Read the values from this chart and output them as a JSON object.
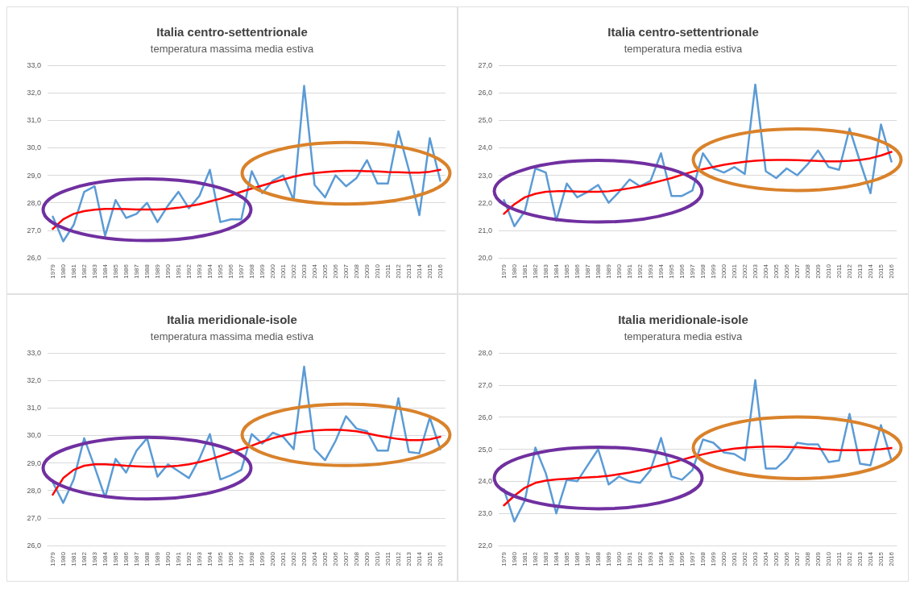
{
  "chart_data": [
    {
      "type": "line",
      "title": "Italia centro-settentrionale",
      "subtitle": "temperatura massima media estiva",
      "categories": [
        "1979",
        "1980",
        "1981",
        "1982",
        "1983",
        "1984",
        "1985",
        "1986",
        "1987",
        "1988",
        "1989",
        "1990",
        "1991",
        "1992",
        "1993",
        "1994",
        "1995",
        "1996",
        "1997",
        "1998",
        "1999",
        "2000",
        "2001",
        "2002",
        "2003",
        "2004",
        "2005",
        "2006",
        "2007",
        "2008",
        "2009",
        "2010",
        "2011",
        "2012",
        "2013",
        "2014",
        "2015",
        "2016"
      ],
      "series": [
        {
          "color": "#5b9bd5",
          "values": [
            27.5,
            26.6,
            27.2,
            28.4,
            28.6,
            26.8,
            28.1,
            27.45,
            27.6,
            28.0,
            27.3,
            27.9,
            28.4,
            27.8,
            28.25,
            29.2,
            27.3,
            27.4,
            27.4,
            29.15,
            28.35,
            28.8,
            29.0,
            28.1,
            32.25,
            28.65,
            28.2,
            29.0,
            28.6,
            28.9,
            29.55,
            28.7,
            28.7,
            30.6,
            29.2,
            27.55,
            30.35,
            28.8
          ]
        },
        {
          "color": "#ff0000",
          "values": [
            27.05,
            27.4,
            27.6,
            27.7,
            27.75,
            27.78,
            27.78,
            27.77,
            27.76,
            27.76,
            27.76,
            27.78,
            27.82,
            27.88,
            27.95,
            28.05,
            28.15,
            28.27,
            28.4,
            28.52,
            28.63,
            28.74,
            28.85,
            28.95,
            29.03,
            29.08,
            29.12,
            29.15,
            29.16,
            29.16,
            29.15,
            29.14,
            29.12,
            29.11,
            29.1,
            29.1,
            29.13,
            29.2
          ]
        }
      ],
      "ylim": [
        26,
        33
      ],
      "yticks": [
        {
          "value": 26,
          "label": "26,0"
        },
        {
          "value": 27,
          "label": "27,0"
        },
        {
          "value": 28,
          "label": "28,0"
        },
        {
          "value": 29,
          "label": "29,0"
        },
        {
          "value": 30,
          "label": "30,0"
        },
        {
          "value": 31,
          "label": "31,0"
        },
        {
          "value": 32,
          "label": "32,0"
        },
        {
          "value": 33,
          "label": "33,0"
        }
      ],
      "grid": "y",
      "marker": "none",
      "line_style": "solid"
    },
    {
      "type": "line",
      "title": "Italia centro-settentrionale",
      "subtitle": "temperatura media estiva",
      "categories": [
        "1979",
        "1980",
        "1981",
        "1982",
        "1983",
        "1984",
        "1985",
        "1986",
        "1987",
        "1988",
        "1989",
        "1990",
        "1991",
        "1992",
        "1993",
        "1994",
        "1995",
        "1996",
        "1997",
        "1998",
        "1999",
        "2000",
        "2001",
        "2002",
        "2003",
        "2004",
        "2005",
        "2006",
        "2007",
        "2008",
        "2009",
        "2010",
        "2011",
        "2012",
        "2013",
        "2014",
        "2015",
        "2016"
      ],
      "series": [
        {
          "color": "#5b9bd5",
          "values": [
            22.1,
            21.15,
            21.7,
            23.25,
            23.1,
            21.35,
            22.7,
            22.2,
            22.4,
            22.65,
            22.0,
            22.4,
            22.85,
            22.6,
            22.8,
            23.8,
            22.25,
            22.25,
            22.45,
            23.8,
            23.25,
            23.1,
            23.3,
            23.05,
            26.3,
            23.15,
            22.9,
            23.25,
            23.0,
            23.4,
            23.9,
            23.3,
            23.2,
            24.7,
            23.5,
            22.35,
            24.85,
            23.5
          ]
        },
        {
          "color": "#ff0000",
          "values": [
            21.6,
            21.95,
            22.2,
            22.33,
            22.4,
            22.42,
            22.42,
            22.41,
            22.4,
            22.4,
            22.42,
            22.47,
            22.53,
            22.6,
            22.7,
            22.8,
            22.9,
            23.02,
            23.13,
            23.22,
            23.3,
            23.38,
            23.44,
            23.49,
            23.53,
            23.55,
            23.56,
            23.56,
            23.55,
            23.54,
            23.52,
            23.51,
            23.51,
            23.53,
            23.56,
            23.62,
            23.72,
            23.85
          ]
        }
      ],
      "ylim": [
        20,
        27
      ],
      "yticks": [
        {
          "value": 20,
          "label": "20,0"
        },
        {
          "value": 21,
          "label": "21,0"
        },
        {
          "value": 22,
          "label": "22,0"
        },
        {
          "value": 23,
          "label": "23,0"
        },
        {
          "value": 24,
          "label": "24,0"
        },
        {
          "value": 25,
          "label": "25,0"
        },
        {
          "value": 26,
          "label": "26,0"
        },
        {
          "value": 27,
          "label": "27,0"
        }
      ],
      "grid": "y",
      "marker": "none",
      "line_style": "solid"
    },
    {
      "type": "line",
      "title": "Italia meridionale-isole",
      "subtitle": "temperatura massima media estiva",
      "categories": [
        "1979",
        "1980",
        "1981",
        "1982",
        "1983",
        "1984",
        "1985",
        "1986",
        "1987",
        "1988",
        "1989",
        "1990",
        "1991",
        "1992",
        "1993",
        "1994",
        "1995",
        "1996",
        "1997",
        "1998",
        "1999",
        "2000",
        "2001",
        "2002",
        "2003",
        "2004",
        "2005",
        "2006",
        "2007",
        "2008",
        "2009",
        "2010",
        "2011",
        "2012",
        "2013",
        "2014",
        "2015",
        "2016"
      ],
      "series": [
        {
          "color": "#5b9bd5",
          "values": [
            28.3,
            27.55,
            28.4,
            29.9,
            28.85,
            27.75,
            29.15,
            28.65,
            29.45,
            29.9,
            28.5,
            28.95,
            28.7,
            28.45,
            29.15,
            30.05,
            28.4,
            28.55,
            28.75,
            30.05,
            29.7,
            30.1,
            29.95,
            29.5,
            32.5,
            29.5,
            29.1,
            29.8,
            30.7,
            30.25,
            30.15,
            29.45,
            29.45,
            31.35,
            29.4,
            29.35,
            30.65,
            29.5
          ]
        },
        {
          "color": "#ff0000",
          "values": [
            27.85,
            28.45,
            28.75,
            28.9,
            28.95,
            28.95,
            28.93,
            28.9,
            28.88,
            28.86,
            28.86,
            28.87,
            28.9,
            28.95,
            29.03,
            29.13,
            29.25,
            29.38,
            29.5,
            29.63,
            29.77,
            29.9,
            30.0,
            30.08,
            30.14,
            30.18,
            30.2,
            30.21,
            30.19,
            30.15,
            30.08,
            30.0,
            29.93,
            29.87,
            29.83,
            29.83,
            29.86,
            29.95
          ]
        }
      ],
      "ylim": [
        26,
        33
      ],
      "yticks": [
        {
          "value": 26,
          "label": "26,0"
        },
        {
          "value": 27,
          "label": "27,0"
        },
        {
          "value": 28,
          "label": "28,0"
        },
        {
          "value": 29,
          "label": "29,0"
        },
        {
          "value": 30,
          "label": "30,0"
        },
        {
          "value": 31,
          "label": "31,0"
        },
        {
          "value": 32,
          "label": "32,0"
        },
        {
          "value": 33,
          "label": "33,0"
        }
      ],
      "grid": "y",
      "marker": "none",
      "line_style": "solid"
    },
    {
      "type": "line",
      "title": "Italia meridionale-isole",
      "subtitle": "temperatura media estiva",
      "categories": [
        "1979",
        "1980",
        "1981",
        "1982",
        "1983",
        "1984",
        "1985",
        "1986",
        "1987",
        "1988",
        "1989",
        "1990",
        "1991",
        "1992",
        "1993",
        "1994",
        "1995",
        "1996",
        "1997",
        "1998",
        "1999",
        "2000",
        "2001",
        "2002",
        "2003",
        "2004",
        "2005",
        "2006",
        "2007",
        "2008",
        "2009",
        "2010",
        "2011",
        "2012",
        "2013",
        "2014",
        "2015",
        "2016"
      ],
      "series": [
        {
          "color": "#5b9bd5",
          "values": [
            23.75,
            22.75,
            23.4,
            25.05,
            24.25,
            23.0,
            24.05,
            24.0,
            24.5,
            25.0,
            23.9,
            24.15,
            24.0,
            23.95,
            24.35,
            25.35,
            24.15,
            24.05,
            24.35,
            25.3,
            25.2,
            24.9,
            24.85,
            24.65,
            27.15,
            24.4,
            24.4,
            24.7,
            25.2,
            25.15,
            25.15,
            24.6,
            24.65,
            26.1,
            24.55,
            24.5,
            25.75,
            24.65
          ]
        },
        {
          "color": "#ff0000",
          "values": [
            23.25,
            23.55,
            23.8,
            23.95,
            24.02,
            24.06,
            24.08,
            24.1,
            24.12,
            24.14,
            24.17,
            24.22,
            24.27,
            24.34,
            24.42,
            24.5,
            24.58,
            24.67,
            24.76,
            24.84,
            24.91,
            24.97,
            25.02,
            25.05,
            25.07,
            25.08,
            25.08,
            25.07,
            25.06,
            25.04,
            25.01,
            24.99,
            24.97,
            24.97,
            24.97,
            24.98,
            25.0,
            25.04
          ]
        }
      ],
      "ylim": [
        22,
        28
      ],
      "yticks": [
        {
          "value": 22,
          "label": "22,0"
        },
        {
          "value": 23,
          "label": "23,0"
        },
        {
          "value": 24,
          "label": "24,0"
        },
        {
          "value": 25,
          "label": "25,0"
        },
        {
          "value": 26,
          "label": "26,0"
        },
        {
          "value": 27,
          "label": "27,0"
        },
        {
          "value": 28,
          "label": "28,0"
        }
      ],
      "grid": "y",
      "marker": "none",
      "line_style": "solid"
    }
  ]
}
